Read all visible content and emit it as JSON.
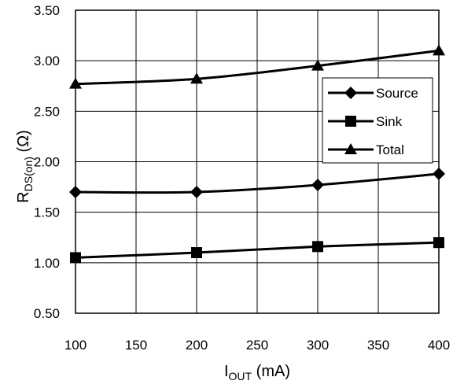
{
  "chart_data": {
    "type": "line",
    "x": [
      100,
      200,
      300,
      400
    ],
    "series": [
      {
        "name": "Source",
        "values": [
          1.7,
          1.7,
          1.77,
          1.88
        ],
        "marker": "diamond"
      },
      {
        "name": "Sink",
        "values": [
          1.05,
          1.1,
          1.16,
          1.2
        ],
        "marker": "square"
      },
      {
        "name": "Total",
        "values": [
          2.77,
          2.82,
          2.95,
          3.1
        ],
        "marker": "triangle"
      }
    ],
    "xlabel": {
      "main": "I",
      "sub": "OUT",
      "rest": " (mA)"
    },
    "ylabel": {
      "main": "R",
      "sub": "DS(on)",
      "rest": " (Ω)"
    },
    "xlim": [
      100,
      400
    ],
    "ylim": [
      0.5,
      3.5
    ],
    "x_ticks": [
      100,
      150,
      200,
      250,
      300,
      350,
      400
    ],
    "y_ticks": [
      "0.50",
      "1.00",
      "1.50",
      "2.00",
      "2.50",
      "3.00",
      "3.50"
    ],
    "grid": true,
    "legend_position": "top-right",
    "line_color": "#000000"
  }
}
